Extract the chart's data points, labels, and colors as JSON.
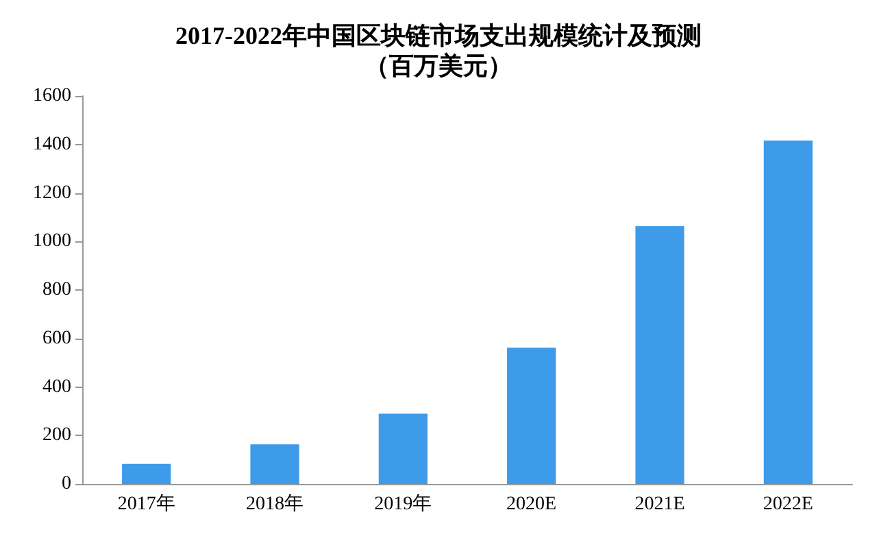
{
  "chart_data": {
    "type": "bar",
    "title": "2017-2022年中国区块链市场支出规模统计及预测",
    "subtitle": "（百万美元）",
    "categories": [
      "2017年",
      "2018年",
      "2019年",
      "2020E",
      "2021E",
      "2022E"
    ],
    "values": [
      83,
      163,
      290,
      562,
      1063,
      1416
    ],
    "color": "#3d9be9",
    "ylim": [
      0,
      1600
    ],
    "yticks": [
      0,
      200,
      400,
      600,
      800,
      1000,
      1200,
      1400,
      1600
    ],
    "grid": false
  }
}
